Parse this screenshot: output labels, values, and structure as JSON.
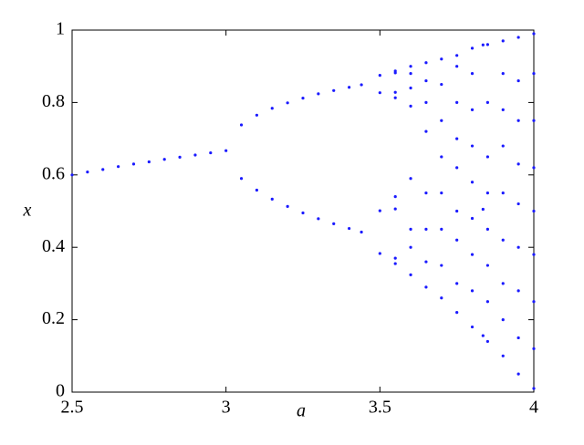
{
  "chart_data": {
    "type": "scatter",
    "x_label": "a",
    "y_label": "x",
    "xlim": [
      2.5,
      4
    ],
    "ylim": [
      0,
      1
    ],
    "xticks": [
      2.5,
      3,
      3.5,
      4
    ],
    "yticks": [
      0,
      0.2,
      0.4,
      0.6,
      0.8,
      1
    ],
    "series": [
      {
        "color": "#1a1aff",
        "x": [
          2.5,
          2.55,
          2.6,
          2.65,
          2.7,
          2.75,
          2.8,
          2.85,
          2.9,
          2.95,
          3.0,
          3.05,
          3.05,
          3.1,
          3.1,
          3.15,
          3.15,
          3.2,
          3.2,
          3.25,
          3.25,
          3.3,
          3.3,
          3.35,
          3.35,
          3.4,
          3.4,
          3.44,
          3.44,
          3.5,
          3.5,
          3.5,
          3.5,
          3.55,
          3.55,
          3.55,
          3.55,
          3.55,
          3.55,
          3.55,
          3.55,
          3.6,
          3.6,
          3.6,
          3.6,
          3.6,
          3.6,
          3.6,
          3.6,
          3.65,
          3.65,
          3.65,
          3.65,
          3.65,
          3.65,
          3.65,
          3.65,
          3.7,
          3.7,
          3.7,
          3.7,
          3.7,
          3.7,
          3.7,
          3.7,
          3.75,
          3.75,
          3.75,
          3.75,
          3.75,
          3.75,
          3.75,
          3.75,
          3.75,
          3.8,
          3.8,
          3.8,
          3.8,
          3.8,
          3.8,
          3.8,
          3.8,
          3.8,
          3.835,
          3.835,
          3.835,
          3.85,
          3.85,
          3.85,
          3.85,
          3.85,
          3.85,
          3.85,
          3.85,
          3.9,
          3.9,
          3.9,
          3.9,
          3.9,
          3.9,
          3.9,
          3.9,
          3.9,
          3.95,
          3.95,
          3.95,
          3.95,
          3.95,
          3.95,
          3.95,
          3.95,
          3.95,
          4.0,
          4.0,
          4.0,
          4.0,
          4.0,
          4.0,
          4.0,
          4.0,
          4.0
        ],
        "y": [
          0.6,
          0.608,
          0.615,
          0.623,
          0.63,
          0.636,
          0.643,
          0.649,
          0.655,
          0.661,
          0.667,
          0.738,
          0.59,
          0.765,
          0.558,
          0.784,
          0.533,
          0.799,
          0.513,
          0.812,
          0.495,
          0.824,
          0.479,
          0.833,
          0.465,
          0.842,
          0.452,
          0.849,
          0.442,
          0.383,
          0.827,
          0.501,
          0.875,
          0.355,
          0.813,
          0.54,
          0.882,
          0.37,
          0.828,
          0.506,
          0.887,
          0.324,
          0.4,
          0.45,
          0.59,
          0.79,
          0.84,
          0.88,
          0.9,
          0.29,
          0.36,
          0.45,
          0.55,
          0.72,
          0.8,
          0.86,
          0.91,
          0.26,
          0.35,
          0.45,
          0.55,
          0.65,
          0.75,
          0.85,
          0.92,
          0.22,
          0.3,
          0.42,
          0.5,
          0.62,
          0.7,
          0.8,
          0.9,
          0.93,
          0.18,
          0.28,
          0.38,
          0.48,
          0.58,
          0.68,
          0.78,
          0.88,
          0.95,
          0.156,
          0.505,
          0.959,
          0.14,
          0.25,
          0.35,
          0.45,
          0.55,
          0.65,
          0.8,
          0.96,
          0.1,
          0.2,
          0.3,
          0.42,
          0.55,
          0.68,
          0.78,
          0.88,
          0.97,
          0.05,
          0.15,
          0.28,
          0.4,
          0.52,
          0.63,
          0.75,
          0.86,
          0.98,
          0.01,
          0.12,
          0.25,
          0.38,
          0.5,
          0.62,
          0.75,
          0.88,
          0.99
        ]
      }
    ]
  }
}
